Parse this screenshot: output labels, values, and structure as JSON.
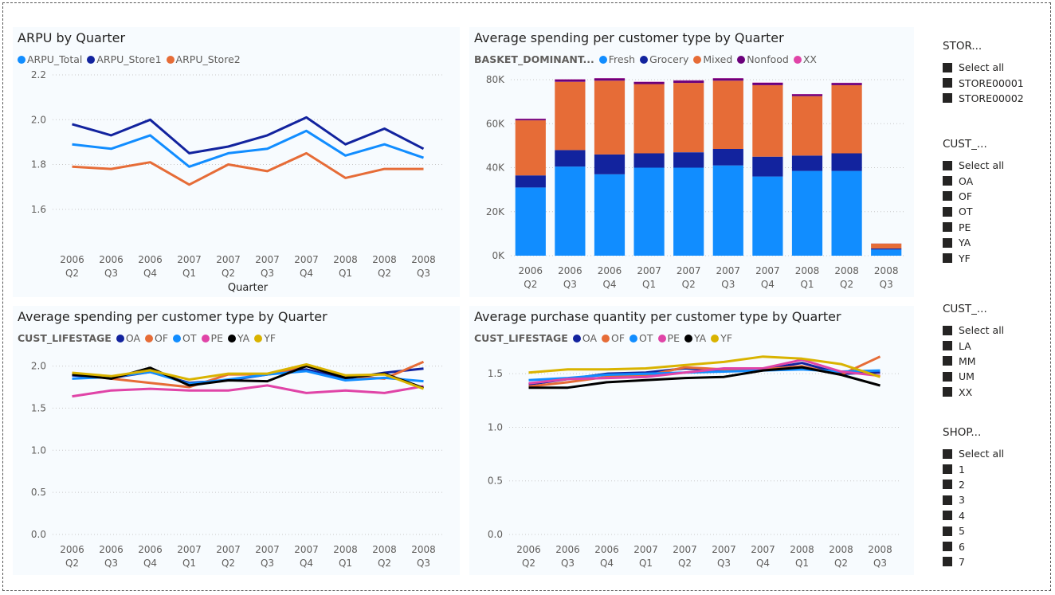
{
  "chart_data": [
    {
      "type": "line",
      "title": "ARPU by Quarter",
      "xlabel": "Quarter",
      "ylabel": "",
      "ylim": [
        1.4,
        2.2
      ],
      "yticks": [
        1.6,
        1.8,
        2.0,
        2.2
      ],
      "categories": [
        [
          "2006",
          "Q2"
        ],
        [
          "2006",
          "Q3"
        ],
        [
          "2006",
          "Q4"
        ],
        [
          "2007",
          "Q1"
        ],
        [
          "2007",
          "Q2"
        ],
        [
          "2007",
          "Q3"
        ],
        [
          "2007",
          "Q4"
        ],
        [
          "2008",
          "Q1"
        ],
        [
          "2008",
          "Q2"
        ],
        [
          "2008",
          "Q3"
        ]
      ],
      "legend_title": "",
      "series": [
        {
          "name": "ARPU_Total",
          "color": "#118DFF",
          "values": [
            1.89,
            1.87,
            1.93,
            1.79,
            1.85,
            1.87,
            1.95,
            1.84,
            1.89,
            1.83
          ]
        },
        {
          "name": "ARPU_Store1",
          "color": "#12239E",
          "values": [
            1.98,
            1.93,
            2.0,
            1.85,
            1.88,
            1.93,
            2.01,
            1.89,
            1.96,
            1.87
          ]
        },
        {
          "name": "ARPU_Store2",
          "color": "#E66C37",
          "values": [
            1.79,
            1.78,
            1.81,
            1.71,
            1.8,
            1.77,
            1.85,
            1.74,
            1.78,
            1.78
          ]
        }
      ]
    },
    {
      "type": "bar",
      "stacked": true,
      "title": "Average spending per customer type by Quarter",
      "legend_title": "BASKET_DOMINANT...",
      "ylim": [
        0,
        80000
      ],
      "yticks": [
        0,
        20000,
        40000,
        60000,
        80000
      ],
      "ytick_labels": [
        "0K",
        "20K",
        "40K",
        "60K",
        "80K"
      ],
      "categories": [
        [
          "2006",
          "Q2"
        ],
        [
          "2006",
          "Q3"
        ],
        [
          "2006",
          "Q4"
        ],
        [
          "2007",
          "Q1"
        ],
        [
          "2007",
          "Q2"
        ],
        [
          "2007",
          "Q3"
        ],
        [
          "2007",
          "Q4"
        ],
        [
          "2008",
          "Q1"
        ],
        [
          "2008",
          "Q2"
        ],
        [
          "2008",
          "Q3"
        ]
      ],
      "series": [
        {
          "name": "Fresh",
          "color": "#118DFF",
          "values": [
            31000,
            40500,
            37000,
            40000,
            40000,
            41000,
            36000,
            38500,
            38500,
            2800
          ]
        },
        {
          "name": "Grocery",
          "color": "#12239E",
          "values": [
            5500,
            7500,
            9000,
            6500,
            7000,
            7500,
            9000,
            7000,
            8000,
            500
          ]
        },
        {
          "name": "Mixed",
          "color": "#E66C37",
          "values": [
            25000,
            31000,
            33500,
            31500,
            31500,
            31000,
            32500,
            27000,
            31000,
            2200
          ]
        },
        {
          "name": "Nonfood",
          "color": "#6B007B",
          "values": [
            700,
            1100,
            1100,
            1000,
            1100,
            1100,
            1100,
            900,
            1000,
            50
          ]
        },
        {
          "name": "XX",
          "color": "#E044A7",
          "values": [
            100,
            100,
            100,
            100,
            100,
            100,
            100,
            100,
            100,
            0
          ]
        }
      ]
    },
    {
      "type": "line",
      "title": "Average spending per customer type by Quarter",
      "legend_title": "CUST_LIFESTAGE",
      "ylim": [
        0,
        2.1
      ],
      "yticks": [
        0.0,
        0.5,
        1.0,
        1.5,
        2.0
      ],
      "categories": [
        [
          "2006",
          "Q2"
        ],
        [
          "2006",
          "Q3"
        ],
        [
          "2006",
          "Q4"
        ],
        [
          "2007",
          "Q1"
        ],
        [
          "2007",
          "Q2"
        ],
        [
          "2007",
          "Q3"
        ],
        [
          "2007",
          "Q4"
        ],
        [
          "2008",
          "Q1"
        ],
        [
          "2008",
          "Q2"
        ],
        [
          "2008",
          "Q3"
        ]
      ],
      "series": [
        {
          "name": "OA",
          "color": "#12239E",
          "values": [
            1.89,
            1.86,
            1.93,
            1.8,
            1.83,
            1.9,
            1.96,
            1.85,
            1.92,
            1.97
          ]
        },
        {
          "name": "OF",
          "color": "#E66C37",
          "values": [
            1.91,
            1.85,
            1.8,
            1.75,
            1.9,
            1.9,
            2.0,
            1.88,
            1.85,
            2.05
          ]
        },
        {
          "name": "OT",
          "color": "#118DFF",
          "values": [
            1.85,
            1.87,
            1.93,
            1.79,
            1.84,
            1.9,
            1.94,
            1.83,
            1.86,
            1.82
          ]
        },
        {
          "name": "PE",
          "color": "#E044A7",
          "values": [
            1.64,
            1.71,
            1.73,
            1.71,
            1.71,
            1.77,
            1.68,
            1.71,
            1.68,
            1.76
          ]
        },
        {
          "name": "YA",
          "color": "#000000",
          "values": [
            1.9,
            1.85,
            1.98,
            1.77,
            1.83,
            1.82,
            2.0,
            1.86,
            1.91,
            1.74
          ]
        },
        {
          "name": "YF",
          "color": "#D9B300",
          "values": [
            1.92,
            1.88,
            1.95,
            1.84,
            1.91,
            1.91,
            2.02,
            1.89,
            1.9,
            1.73
          ]
        }
      ]
    },
    {
      "type": "line",
      "title": "Average purchase quantity per customer type by Quarter",
      "legend_title": "CUST_LIFESTAGE",
      "ylim": [
        0,
        1.65
      ],
      "yticks": [
        0.0,
        0.5,
        1.0,
        1.5
      ],
      "categories": [
        [
          "2006",
          "Q2"
        ],
        [
          "2006",
          "Q3"
        ],
        [
          "2006",
          "Q4"
        ],
        [
          "2007",
          "Q1"
        ],
        [
          "2007",
          "Q2"
        ],
        [
          "2007",
          "Q3"
        ],
        [
          "2007",
          "Q4"
        ],
        [
          "2008",
          "Q1"
        ],
        [
          "2008",
          "Q2"
        ],
        [
          "2008",
          "Q3"
        ]
      ],
      "series": [
        {
          "name": "OA",
          "color": "#12239E",
          "values": [
            1.4,
            1.45,
            1.5,
            1.51,
            1.55,
            1.53,
            1.54,
            1.6,
            1.5,
            1.51
          ]
        },
        {
          "name": "OF",
          "color": "#E66C37",
          "values": [
            1.38,
            1.42,
            1.47,
            1.48,
            1.56,
            1.54,
            1.54,
            1.57,
            1.49,
            1.66
          ]
        },
        {
          "name": "OT",
          "color": "#118DFF",
          "values": [
            1.44,
            1.46,
            1.49,
            1.5,
            1.51,
            1.52,
            1.53,
            1.54,
            1.52,
            1.53
          ]
        },
        {
          "name": "PE",
          "color": "#E044A7",
          "values": [
            1.41,
            1.45,
            1.46,
            1.47,
            1.51,
            1.55,
            1.55,
            1.63,
            1.52,
            1.48
          ]
        },
        {
          "name": "YA",
          "color": "#000000",
          "values": [
            1.37,
            1.37,
            1.42,
            1.44,
            1.46,
            1.47,
            1.53,
            1.56,
            1.49,
            1.39
          ]
        },
        {
          "name": "YF",
          "color": "#D9B300",
          "values": [
            1.51,
            1.54,
            1.54,
            1.55,
            1.58,
            1.61,
            1.66,
            1.64,
            1.59,
            1.47
          ]
        }
      ]
    }
  ],
  "slicers": [
    {
      "title": "STOR...",
      "items": [
        "Select all",
        "STORE00001",
        "STORE00002"
      ]
    },
    {
      "title": "CUST_...",
      "items": [
        "Select all",
        "OA",
        "OF",
        "OT",
        "PE",
        "YA",
        "YF"
      ]
    },
    {
      "title": "CUST_...",
      "items": [
        "Select all",
        "LA",
        "MM",
        "UM",
        "XX"
      ]
    },
    {
      "title": "SHOP...",
      "items": [
        "Select all",
        "1",
        "2",
        "3",
        "4",
        "5",
        "6",
        "7"
      ]
    }
  ]
}
